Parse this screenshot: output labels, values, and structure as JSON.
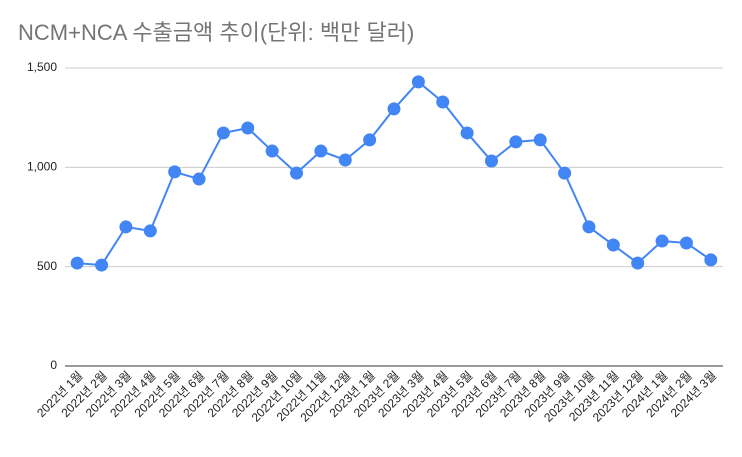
{
  "chart_data": {
    "type": "line",
    "title": "NCM+NCA 수출금액 추이(단위: 백만 달러)",
    "categories": [
      "2022년 1월",
      "2022년 2월",
      "2022년 3월",
      "2022년 4월",
      "2022년 5월",
      "2022년 6월",
      "2022년 7월",
      "2022년 8월",
      "2022년 9월",
      "2022년 10월",
      "2022년 11월",
      "2022년 12월",
      "2023년 1월",
      "2023년 2월",
      "2023년 3월",
      "2023년 4월",
      "2023년 5월",
      "2023년 6월",
      "2023년 7월",
      "2023년 8월",
      "2023년 9월",
      "2023년 10월",
      "2023년 11월",
      "2023년 12월",
      "2024년 1월",
      "2024년 2월",
      "2024년 3월"
    ],
    "values": [
      518,
      508,
      700,
      680,
      977,
      941,
      1173,
      1198,
      1082,
      971,
      1082,
      1037,
      1138,
      1294,
      1430,
      1329,
      1173,
      1032,
      1128,
      1138,
      971,
      700,
      609,
      518,
      629,
      619,
      534
    ],
    "color": "#4285f4",
    "ylim": [
      0,
      1500
    ],
    "yticks": [
      0,
      500,
      {
        "value": 1000,
        "label": "1,000"
      },
      {
        "value": 1500,
        "label": "1,500"
      }
    ],
    "grid": true
  }
}
